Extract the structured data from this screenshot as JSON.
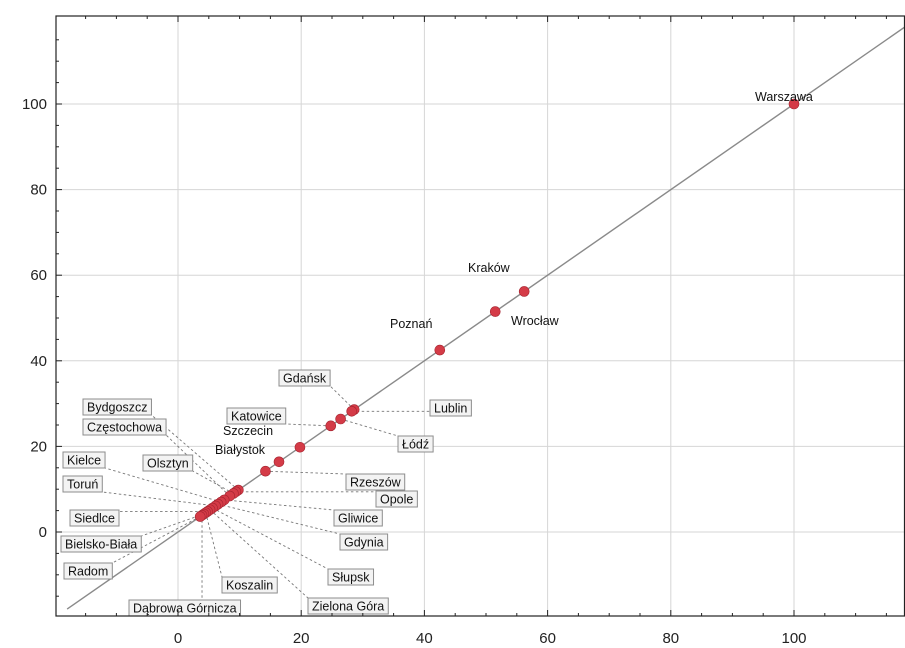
{
  "chart_data": {
    "type": "scatter",
    "title": "",
    "xlabel": "",
    "ylabel": "",
    "xlim": [
      -20,
      118
    ],
    "ylim": [
      -20,
      118
    ],
    "x_ticks": [
      0,
      20,
      40,
      60,
      80,
      100
    ],
    "y_ticks": [
      0,
      20,
      40,
      60,
      80,
      100
    ],
    "grid": true,
    "reference_line": "y = x",
    "point_color": "#d43b47",
    "points": [
      {
        "label": "Warszawa",
        "x": 100,
        "y": 100,
        "boxed": false
      },
      {
        "label": "Kraków",
        "x": 56.2,
        "y": 56.2,
        "boxed": false
      },
      {
        "label": "Wrocław",
        "x": 51.5,
        "y": 51.5,
        "boxed": false
      },
      {
        "label": "Poznań",
        "x": 42.5,
        "y": 42.5,
        "boxed": false
      },
      {
        "label": "Gdańsk",
        "x": 28.6,
        "y": 28.6,
        "boxed": true
      },
      {
        "label": "Lublin",
        "x": 28.2,
        "y": 28.2,
        "boxed": true
      },
      {
        "label": "Łódź",
        "x": 26.4,
        "y": 26.4,
        "boxed": true
      },
      {
        "label": "Katowice",
        "x": 24.8,
        "y": 24.8,
        "boxed": true
      },
      {
        "label": "Szczecin",
        "x": 19.8,
        "y": 19.8,
        "boxed": false
      },
      {
        "label": "Białystok",
        "x": 16.4,
        "y": 16.4,
        "boxed": false
      },
      {
        "label": "Rzeszów",
        "x": 14.2,
        "y": 14.2,
        "boxed": true
      },
      {
        "label": "Bydgoszcz",
        "x": 9.8,
        "y": 9.8,
        "boxed": true
      },
      {
        "label": "Opole",
        "x": 9.4,
        "y": 9.4,
        "boxed": true
      },
      {
        "label": "Olsztyn",
        "x": 9.0,
        "y": 9.0,
        "boxed": true
      },
      {
        "label": "Częstochowa",
        "x": 8.4,
        "y": 8.4,
        "boxed": true
      },
      {
        "label": "Gliwice",
        "x": 7.5,
        "y": 7.5,
        "boxed": true
      },
      {
        "label": "Kielce",
        "x": 7.0,
        "y": 7.0,
        "boxed": true
      },
      {
        "label": "Gdynia",
        "x": 6.5,
        "y": 6.5,
        "boxed": true
      },
      {
        "label": "Toruń",
        "x": 6.1,
        "y": 6.1,
        "boxed": true
      },
      {
        "label": "Słupsk",
        "x": 5.6,
        "y": 5.6,
        "boxed": true
      },
      {
        "label": "Zielona Góra",
        "x": 5.2,
        "y": 5.2,
        "boxed": true
      },
      {
        "label": "Siedlce",
        "x": 4.8,
        "y": 4.8,
        "boxed": true
      },
      {
        "label": "Koszalin",
        "x": 4.5,
        "y": 4.5,
        "boxed": true
      },
      {
        "label": "Bielsko-Biała",
        "x": 4.2,
        "y": 4.2,
        "boxed": true
      },
      {
        "label": "Dąbrowa Górnicza",
        "x": 3.9,
        "y": 3.9,
        "boxed": true
      },
      {
        "label": "Radom",
        "x": 3.6,
        "y": 3.6,
        "boxed": true
      }
    ]
  }
}
